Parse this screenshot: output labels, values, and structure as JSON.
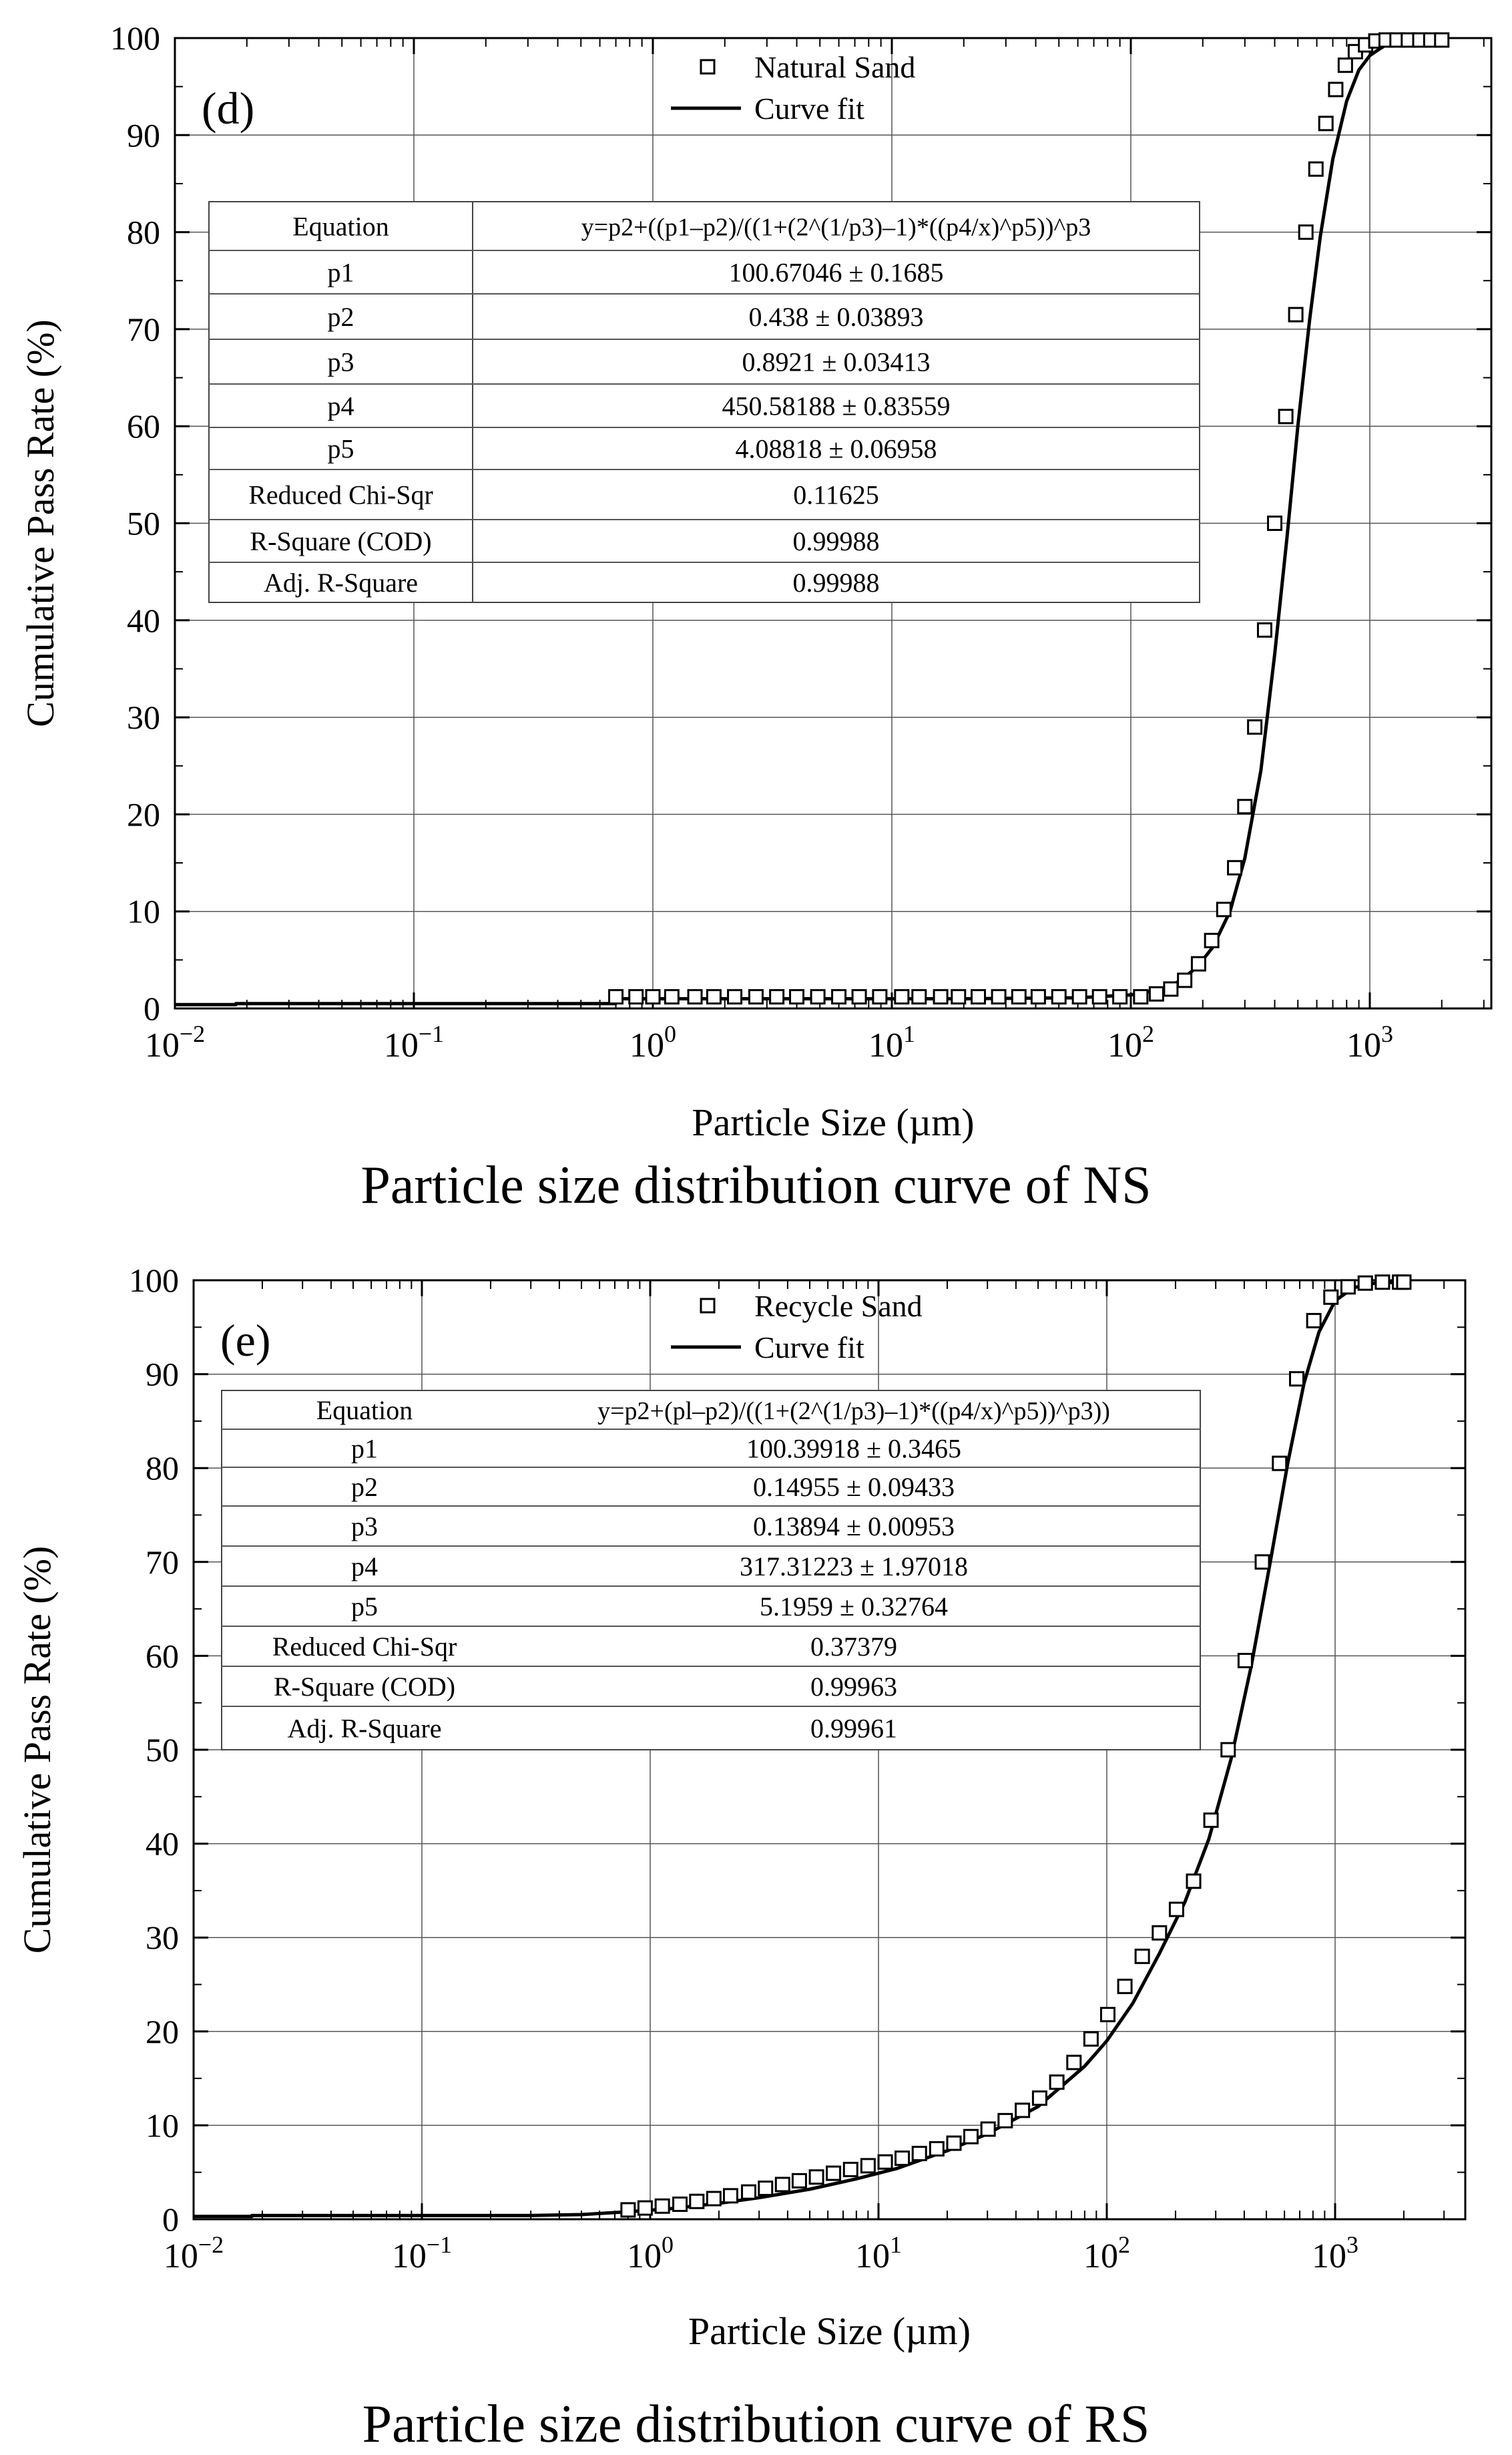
{
  "charts": [
    {
      "id": "ns",
      "caption": "Particle size distribution curve of NS",
      "chart_data": {
        "type": "scatter",
        "panel_label": "(d)",
        "xlabel": "Particle Size (µm)",
        "ylabel": "Cumulative Pass Rate (%)",
        "xscale": "log",
        "xlim": [
          0.01,
          3000
        ],
        "ylim": [
          0,
          100
        ],
        "x_ticks": [
          {
            "base": "10",
            "exp": "−2"
          },
          {
            "base": "10",
            "exp": "−1"
          },
          {
            "base": "10",
            "exp": "0"
          },
          {
            "base": "10",
            "exp": "1"
          },
          {
            "base": "10",
            "exp": "2"
          },
          {
            "base": "10",
            "exp": "3"
          }
        ],
        "y_ticks": [
          "0",
          "10",
          "20",
          "30",
          "40",
          "50",
          "60",
          "70",
          "80",
          "90",
          "100"
        ],
        "legend": {
          "scatter": "Natural Sand",
          "line": "Curve fit",
          "position": "top-center"
        },
        "series": [
          {
            "name": "Natural Sand",
            "kind": "points",
            "x": [
              0.7,
              0.85,
              1.0,
              1.2,
              1.5,
              1.8,
              2.2,
              2.7,
              3.3,
              4.0,
              4.9,
              6.0,
              7.3,
              8.9,
              11,
              13,
              16,
              19,
              23,
              28,
              34,
              41,
              50,
              61,
              74,
              90,
              110,
              128,
              147,
              168,
              192,
              218,
              245,
              272,
              300,
              330,
              363,
              400,
              445,
              490,
              540,
              595,
              655,
              720,
              790,
              870,
              960,
              1060,
              1170,
              1300,
              1450,
              1620,
              1800,
              2000
            ],
            "y": [
              1.2,
              1.2,
              1.2,
              1.2,
              1.2,
              1.2,
              1.2,
              1.2,
              1.2,
              1.2,
              1.2,
              1.2,
              1.2,
              1.2,
              1.2,
              1.2,
              1.2,
              1.2,
              1.2,
              1.2,
              1.2,
              1.2,
              1.2,
              1.2,
              1.2,
              1.2,
              1.2,
              1.5,
              2.0,
              2.9,
              4.6,
              7.0,
              10.2,
              14.5,
              20.8,
              29.0,
              39.0,
              50.0,
              61.0,
              71.5,
              80.0,
              86.5,
              91.2,
              94.7,
              97.2,
              98.6,
              99.3,
              99.7,
              99.8,
              99.8,
              99.8,
              99.8,
              99.8,
              99.8
            ]
          },
          {
            "name": "Curve fit",
            "kind": "line",
            "x": [
              0.01,
              0.018,
              0.018,
              0.7,
              0.7,
              20,
              60,
              100,
              130,
              160,
              190,
              220,
              260,
              300,
              350,
              400,
              450,
              500,
              560,
              620,
              700,
              800,
              900,
              1000,
              1150,
              1300,
              1600,
              2000
            ],
            "y": [
              0.4,
              0.4,
              0.5,
              0.5,
              1.0,
              1.0,
              1.1,
              1.4,
              1.9,
              2.8,
              4.3,
              6.3,
              10.0,
              15.5,
              24.5,
              36.5,
              48.5,
              60.0,
              71.0,
              79.5,
              87.5,
              93.5,
              96.7,
              98.2,
              99.2,
              99.6,
              99.8,
              99.8
            ]
          }
        ],
        "fit_table": {
          "rows": [
            {
              "label": "Equation",
              "value": "y=p2+((p1–p2)/((1+(2^(1/p3)–1)*((p4/x)^p5))^p3"
            },
            {
              "label": "p1",
              "value": "100.67046 ± 0.1685"
            },
            {
              "label": "p2",
              "value": "0.438 ± 0.03893"
            },
            {
              "label": "p3",
              "value": "0.8921 ± 0.03413"
            },
            {
              "label": "p4",
              "value": "450.58188 ± 0.83559"
            },
            {
              "label": "p5",
              "value": "4.08818 ± 0.06958"
            },
            {
              "label": "Reduced Chi-Sqr",
              "value": "0.11625"
            },
            {
              "label": "R-Square (COD)",
              "value": "0.99988"
            },
            {
              "label": "Adj. R-Square",
              "value": "0.99988"
            }
          ]
        }
      }
    },
    {
      "id": "rs",
      "caption": "Particle size distribution curve of RS",
      "chart_data": {
        "type": "scatter",
        "panel_label": "(e)",
        "xlabel": "Particle Size (µm)",
        "ylabel": "Cumulative Pass Rate (%)",
        "xscale": "log",
        "xlim": [
          0.01,
          3000
        ],
        "ylim": [
          0,
          100
        ],
        "x_ticks": [
          {
            "base": "10",
            "exp": "−2"
          },
          {
            "base": "10",
            "exp": "−1"
          },
          {
            "base": "10",
            "exp": "0"
          },
          {
            "base": "10",
            "exp": "1"
          },
          {
            "base": "10",
            "exp": "2"
          },
          {
            "base": "10",
            "exp": "3"
          }
        ],
        "y_ticks": [
          "0",
          "10",
          "20",
          "30",
          "40",
          "50",
          "60",
          "70",
          "80",
          "90",
          "100"
        ],
        "legend": {
          "scatter": "Recycle Sand",
          "line": "Curve fit",
          "position": "top-center"
        },
        "series": [
          {
            "name": "Recycle Sand",
            "kind": "points",
            "x": [
              0.8,
              0.95,
              1.13,
              1.35,
              1.6,
              1.9,
              2.25,
              2.7,
              3.2,
              3.8,
              4.5,
              5.35,
              6.35,
              7.55,
              9.0,
              10.7,
              12.7,
              15.1,
              18.0,
              21.4,
              25.4,
              30.2,
              35.9,
              42.7,
              50.8,
              60.4,
              71.8,
              85.3,
              101,
              120,
              143,
              170,
              202,
              240,
              286,
              340,
              404,
              480,
              571,
              679,
              807,
              959,
              1140,
              1356,
              1612,
              1916,
              2000
            ],
            "y": [
              1.0,
              1.2,
              1.4,
              1.6,
              1.9,
              2.2,
              2.5,
              2.9,
              3.3,
              3.7,
              4.1,
              4.5,
              4.9,
              5.3,
              5.7,
              6.1,
              6.5,
              7.0,
              7.5,
              8.1,
              8.8,
              9.6,
              10.5,
              11.6,
              12.9,
              14.6,
              16.7,
              19.2,
              21.8,
              24.8,
              28.0,
              30.5,
              33.0,
              36.0,
              42.5,
              50.0,
              59.5,
              70.0,
              80.5,
              89.5,
              95.7,
              98.2,
              99.3,
              99.7,
              99.8,
              99.8,
              99.8
            ]
          },
          {
            "name": "Curve fit",
            "kind": "line",
            "x": [
              0.01,
              0.018,
              0.018,
              0.3,
              0.5,
              0.8,
              1.2,
              2,
              3,
              5,
              8,
              12,
              20,
              30,
              50,
              80,
              100,
              130,
              170,
              220,
              280,
              350,
              430,
              520,
              620,
              730,
              850,
              1000,
              1200,
              1500,
              2000
            ],
            "y": [
              0.3,
              0.3,
              0.4,
              0.4,
              0.5,
              0.8,
              1.1,
              1.7,
              2.3,
              3.2,
              4.3,
              5.4,
              7.3,
              9.1,
              12.0,
              16.3,
              19.0,
              23.0,
              28.3,
              33.8,
              40.5,
              49.0,
              59.0,
              70.0,
              80.5,
              89.0,
              94.5,
              97.8,
              99.2,
              99.7,
              99.8
            ]
          }
        ],
        "fit_table": {
          "rows": [
            {
              "label": "Equation",
              "value": "y=p2+(pl–p2)/((1+(2^(1/p3)–1)*((p4/x)^p5))^p3))"
            },
            {
              "label": "p1",
              "value": "100.39918 ± 0.3465"
            },
            {
              "label": "p2",
              "value": "0.14955 ± 0.09433"
            },
            {
              "label": "p3",
              "value": "0.13894 ± 0.00953"
            },
            {
              "label": "p4",
              "value": "317.31223 ± 1.97018"
            },
            {
              "label": "p5",
              "value": "5.1959 ± 0.32764"
            },
            {
              "label": "Reduced Chi-Sqr",
              "value": "0.37379"
            },
            {
              "label": "R-Square (COD)",
              "value": "0.99963"
            },
            {
              "label": "Adj. R-Square",
              "value": "0.99961"
            }
          ]
        }
      }
    }
  ]
}
